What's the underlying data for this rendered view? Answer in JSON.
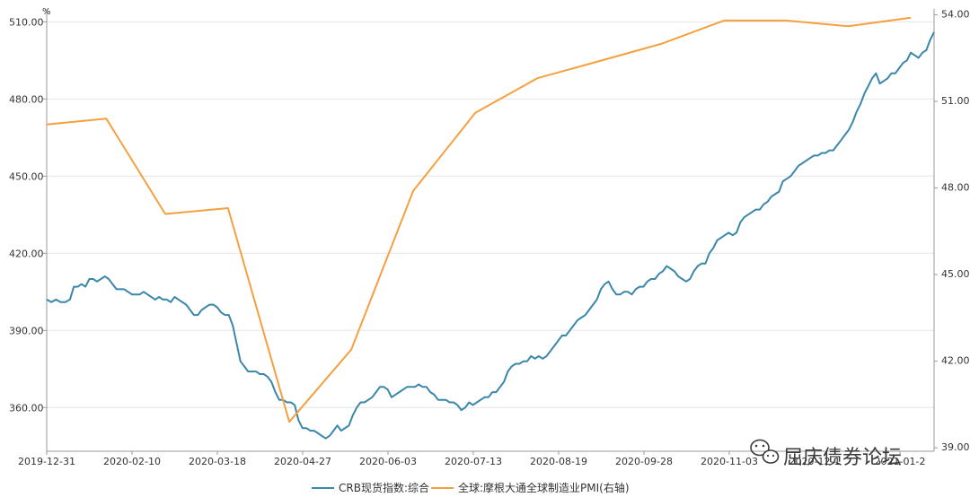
{
  "chart_data": {
    "type": "line",
    "unit_label": "%",
    "x_tick_labels": [
      "2019-12-31",
      "2020-02-10",
      "2020-03-18",
      "2020-04-27",
      "2020-06-03",
      "2020-07-13",
      "2020-08-19",
      "2020-09-28",
      "2020-11-03",
      "2020-12-1",
      "2021-01-2"
    ],
    "y_left": {
      "ticks": [
        360,
        390,
        420,
        450,
        480,
        510
      ],
      "tick_labels": [
        "360.00",
        "390.00",
        "420.00",
        "450.00",
        "480.00",
        "510.00"
      ],
      "ylim": [
        343,
        515
      ]
    },
    "y_right": {
      "ticks": [
        39,
        42,
        45,
        48,
        51,
        54
      ],
      "tick_labels": [
        "39.00",
        "42.00",
        "45.00",
        "48.00",
        "51.00",
        "54.00"
      ],
      "ylim": [
        38.88,
        54.2
      ]
    },
    "grid": true,
    "legend_position": "bottom-center",
    "colors": {
      "crb": "#3a87ab",
      "pmi": "#f5a03f",
      "grid": "#e6e6e6",
      "axis": "#999999",
      "text": "#333333"
    },
    "series": [
      {
        "name": "CRB现货指数:综合",
        "axis": "left",
        "points": [
          [
            0,
            402
          ],
          [
            0.6,
            401
          ],
          [
            1.2,
            402
          ],
          [
            1.8,
            401
          ],
          [
            2.4,
            401
          ],
          [
            3,
            402
          ],
          [
            3.5,
            407
          ],
          [
            4,
            407
          ],
          [
            4.5,
            408
          ],
          [
            5,
            407
          ],
          [
            5.5,
            410
          ],
          [
            6,
            410
          ],
          [
            6.5,
            409
          ],
          [
            7,
            410
          ],
          [
            7.5,
            411
          ],
          [
            8,
            410
          ],
          [
            8.5,
            408
          ],
          [
            9,
            406
          ],
          [
            9.5,
            406
          ],
          [
            10,
            406
          ],
          [
            10.5,
            405
          ],
          [
            11,
            404
          ],
          [
            11.5,
            404
          ],
          [
            12,
            404
          ],
          [
            12.5,
            405
          ],
          [
            13,
            404
          ],
          [
            13.5,
            403
          ],
          [
            14,
            402
          ],
          [
            14.5,
            403
          ],
          [
            15,
            402
          ],
          [
            15.5,
            402
          ],
          [
            16,
            401
          ],
          [
            16.5,
            403
          ],
          [
            17,
            402
          ],
          [
            17.5,
            401
          ],
          [
            18,
            400
          ],
          [
            18.5,
            398
          ],
          [
            19,
            396
          ],
          [
            19.5,
            396
          ],
          [
            20,
            398
          ],
          [
            20.5,
            399
          ],
          [
            21,
            400
          ],
          [
            21.5,
            400
          ],
          [
            22,
            399
          ],
          [
            22.5,
            397
          ],
          [
            23,
            396
          ],
          [
            23.5,
            396
          ],
          [
            24,
            392
          ],
          [
            24.5,
            385
          ],
          [
            25,
            378
          ],
          [
            25.5,
            376
          ],
          [
            26,
            374
          ],
          [
            26.5,
            374
          ],
          [
            27,
            374
          ],
          [
            27.5,
            373
          ],
          [
            28,
            373
          ],
          [
            28.5,
            372
          ],
          [
            29,
            370
          ],
          [
            29.5,
            366
          ],
          [
            30,
            363
          ],
          [
            30.5,
            363
          ],
          [
            31,
            362
          ],
          [
            31.5,
            362
          ],
          [
            32,
            361
          ],
          [
            32.5,
            355
          ],
          [
            33,
            352
          ],
          [
            33.5,
            352
          ],
          [
            34,
            351
          ],
          [
            34.5,
            351
          ],
          [
            35,
            350
          ],
          [
            35.5,
            349
          ],
          [
            36,
            348
          ],
          [
            36.5,
            349
          ],
          [
            37,
            351
          ],
          [
            37.5,
            353
          ],
          [
            38,
            351
          ],
          [
            38.5,
            352
          ],
          [
            39,
            353
          ],
          [
            39.5,
            357
          ],
          [
            40,
            360
          ],
          [
            40.5,
            362
          ],
          [
            41,
            362
          ],
          [
            41.5,
            363
          ],
          [
            42,
            364
          ],
          [
            42.5,
            366
          ],
          [
            43,
            368
          ],
          [
            43.5,
            368
          ],
          [
            44,
            367
          ],
          [
            44.5,
            364
          ],
          [
            45,
            365
          ],
          [
            45.5,
            366
          ],
          [
            46,
            367
          ],
          [
            46.5,
            368
          ],
          [
            47,
            368
          ],
          [
            47.5,
            368
          ],
          [
            48,
            369
          ],
          [
            48.5,
            368
          ],
          [
            49,
            368
          ],
          [
            49.5,
            366
          ],
          [
            50,
            365
          ],
          [
            50.5,
            363
          ],
          [
            51,
            363
          ],
          [
            51.5,
            363
          ],
          [
            52,
            362
          ],
          [
            52.5,
            362
          ],
          [
            53,
            361
          ],
          [
            53.5,
            359
          ],
          [
            54,
            360
          ],
          [
            54.5,
            362
          ],
          [
            55,
            361
          ],
          [
            55.5,
            362
          ],
          [
            56,
            363
          ],
          [
            56.5,
            364
          ],
          [
            57,
            364
          ],
          [
            57.5,
            366
          ],
          [
            58,
            366
          ],
          [
            58.5,
            368
          ],
          [
            59,
            370
          ],
          [
            59.5,
            374
          ],
          [
            60,
            376
          ],
          [
            60.5,
            377
          ],
          [
            61,
            377
          ],
          [
            61.5,
            378
          ],
          [
            62,
            378
          ],
          [
            62.5,
            380
          ],
          [
            63,
            379
          ],
          [
            63.5,
            380
          ],
          [
            64,
            379
          ],
          [
            64.5,
            380
          ],
          [
            65,
            382
          ],
          [
            65.5,
            384
          ],
          [
            66,
            386
          ],
          [
            66.5,
            388
          ],
          [
            67,
            388
          ],
          [
            67.5,
            390
          ],
          [
            68,
            392
          ],
          [
            68.5,
            394
          ],
          [
            69,
            395
          ],
          [
            69.5,
            396
          ],
          [
            70,
            398
          ],
          [
            70.5,
            400
          ],
          [
            71,
            402
          ],
          [
            71.5,
            406
          ],
          [
            72,
            408
          ],
          [
            72.5,
            409
          ],
          [
            73,
            406
          ],
          [
            73.5,
            404
          ],
          [
            74,
            404
          ],
          [
            74.5,
            405
          ],
          [
            75,
            405
          ],
          [
            75.5,
            404
          ],
          [
            76,
            406
          ],
          [
            76.5,
            407
          ],
          [
            77,
            407
          ],
          [
            77.5,
            409
          ],
          [
            78,
            410
          ],
          [
            78.5,
            410
          ],
          [
            79,
            412
          ],
          [
            79.5,
            413
          ],
          [
            80,
            415
          ],
          [
            80.5,
            414
          ],
          [
            81,
            413
          ],
          [
            81.5,
            411
          ],
          [
            82,
            410
          ],
          [
            82.5,
            409
          ],
          [
            83,
            410
          ],
          [
            83.5,
            413
          ],
          [
            84,
            415
          ],
          [
            84.5,
            416
          ],
          [
            85,
            416
          ],
          [
            85.5,
            420
          ],
          [
            86,
            422
          ],
          [
            86.5,
            425
          ],
          [
            87,
            426
          ],
          [
            87.5,
            427
          ],
          [
            88,
            428
          ],
          [
            88.5,
            427
          ],
          [
            89,
            428
          ],
          [
            89.5,
            432
          ],
          [
            90,
            434
          ],
          [
            90.5,
            435
          ],
          [
            91,
            436
          ],
          [
            91.5,
            437
          ],
          [
            92,
            437
          ],
          [
            92.5,
            439
          ],
          [
            93,
            440
          ],
          [
            93.5,
            442
          ],
          [
            94,
            443
          ],
          [
            94.5,
            444
          ],
          [
            95,
            448
          ],
          [
            95.5,
            449
          ],
          [
            96,
            450
          ],
          [
            96.5,
            452
          ],
          [
            97,
            454
          ],
          [
            97.5,
            455
          ],
          [
            98,
            456
          ],
          [
            98.5,
            457
          ],
          [
            99,
            458
          ],
          [
            99.5,
            458
          ],
          [
            100,
            459
          ],
          [
            100.5,
            459
          ],
          [
            101,
            460
          ],
          [
            101.5,
            460
          ],
          [
            102,
            462
          ],
          [
            102.5,
            464
          ],
          [
            103,
            466
          ],
          [
            103.5,
            468
          ],
          [
            104,
            471
          ],
          [
            104.5,
            475
          ],
          [
            105,
            478
          ],
          [
            105.5,
            482
          ],
          [
            106,
            485
          ],
          [
            106.5,
            488
          ],
          [
            107,
            490
          ],
          [
            107.5,
            486
          ],
          [
            108,
            487
          ],
          [
            108.5,
            488
          ],
          [
            109,
            490
          ],
          [
            109.5,
            490
          ],
          [
            110,
            492
          ],
          [
            110.5,
            494
          ],
          [
            111,
            495
          ],
          [
            111.5,
            498
          ],
          [
            112,
            497
          ],
          [
            112.5,
            496
          ],
          [
            113,
            498
          ],
          [
            113.5,
            499
          ],
          [
            114,
            503
          ],
          [
            114.5,
            506
          ]
        ]
      },
      {
        "name": "全球:摩根大通全球制造业PMI(右轴)",
        "axis": "right",
        "points": [
          [
            0,
            50.2
          ],
          [
            7.7,
            50.4
          ],
          [
            15.3,
            47.1
          ],
          [
            23.4,
            47.3
          ],
          [
            31.3,
            39.9
          ],
          [
            39.3,
            42.4
          ],
          [
            47.3,
            47.9
          ],
          [
            55.3,
            50.6
          ],
          [
            63.3,
            51.8
          ],
          [
            71.4,
            52.4
          ],
          [
            79.4,
            53.0
          ],
          [
            87.4,
            53.8
          ],
          [
            95.4,
            53.8
          ],
          [
            103.4,
            53.6
          ],
          [
            111.5,
            53.9
          ]
        ]
      }
    ]
  },
  "watermark": {
    "text": "屈庆债券论坛"
  }
}
